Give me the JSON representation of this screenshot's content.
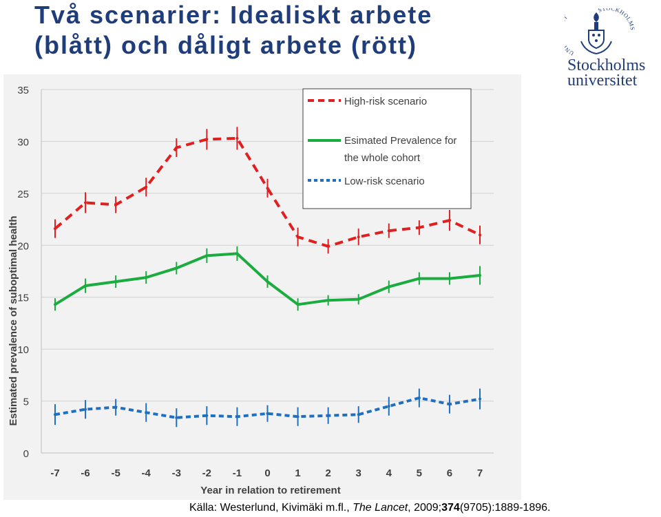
{
  "slide": {
    "title_line1": "Två scenarier: Idealiskt arbete",
    "title_line2": "(blått) och dåligt arbete (rött)",
    "title_color": "#1f3d7a"
  },
  "logo": {
    "line1": "Stockholms",
    "line2": "universitet",
    "seal_text_left": "UNIVERSITET",
    "seal_text_right": "STOCKHOLMS",
    "color": "#1f3d7a"
  },
  "source": {
    "prefix": "Källa: Westerlund, Kivimäki m.fl., ",
    "journal": "The Lancet",
    "year_sep": ", 2009;",
    "volume": "374",
    "issue_pages": "(9705):1889-1896."
  },
  "chart_data": {
    "type": "line",
    "xlabel": "Year in relation to retirement",
    "ylabel": "Estimated prevalence of suboptimal health",
    "x": [
      -7,
      -6,
      -5,
      -4,
      -3,
      -2,
      -1,
      0,
      1,
      2,
      3,
      4,
      5,
      6,
      7
    ],
    "x_tick_labels": [
      "-7",
      "-6",
      "-5",
      "-4",
      "-3",
      "-2",
      "-1",
      "0",
      "1",
      "2",
      "3",
      "4",
      "5",
      "6",
      "7"
    ],
    "y_ticks": [
      0,
      5,
      10,
      15,
      20,
      25,
      30,
      35
    ],
    "ylim": [
      0,
      35
    ],
    "grid": true,
    "legend_position": "top-right",
    "series": [
      {
        "name": "High-risk scenario",
        "color": "#e02020",
        "style": "dashed",
        "values": [
          21.6,
          24.1,
          23.9,
          25.6,
          29.4,
          30.2,
          30.3,
          25.5,
          20.8,
          19.9,
          20.8,
          21.4,
          21.7,
          22.4,
          21.0
        ],
        "errors": [
          0.9,
          1.0,
          0.8,
          0.9,
          0.9,
          1.0,
          1.1,
          0.9,
          0.9,
          0.7,
          0.8,
          0.7,
          0.7,
          1.0,
          0.9
        ]
      },
      {
        "name": "Esimated Prevalence for the whole cohort",
        "legend_line1": "Esimated Prevalence for",
        "legend_line2": "the whole cohort",
        "color": "#1aac3e",
        "style": "solid",
        "values": [
          14.3,
          16.1,
          16.5,
          16.9,
          17.8,
          19.0,
          19.2,
          16.5,
          14.3,
          14.7,
          14.8,
          16.0,
          16.8,
          16.8,
          17.1
        ],
        "errors": [
          0.6,
          0.7,
          0.6,
          0.6,
          0.6,
          0.7,
          0.7,
          0.6,
          0.6,
          0.5,
          0.5,
          0.6,
          0.6,
          0.6,
          0.9
        ]
      },
      {
        "name": "Low-risk scenario",
        "color": "#1f6fc1",
        "style": "dotted",
        "values": [
          3.7,
          4.2,
          4.4,
          3.9,
          3.4,
          3.6,
          3.5,
          3.8,
          3.5,
          3.6,
          3.7,
          4.5,
          5.3,
          4.7,
          5.2
        ],
        "errors": [
          1.0,
          0.9,
          0.8,
          0.9,
          0.9,
          0.9,
          0.9,
          0.8,
          0.9,
          0.8,
          0.8,
          0.9,
          0.9,
          0.9,
          1.0
        ]
      }
    ]
  }
}
